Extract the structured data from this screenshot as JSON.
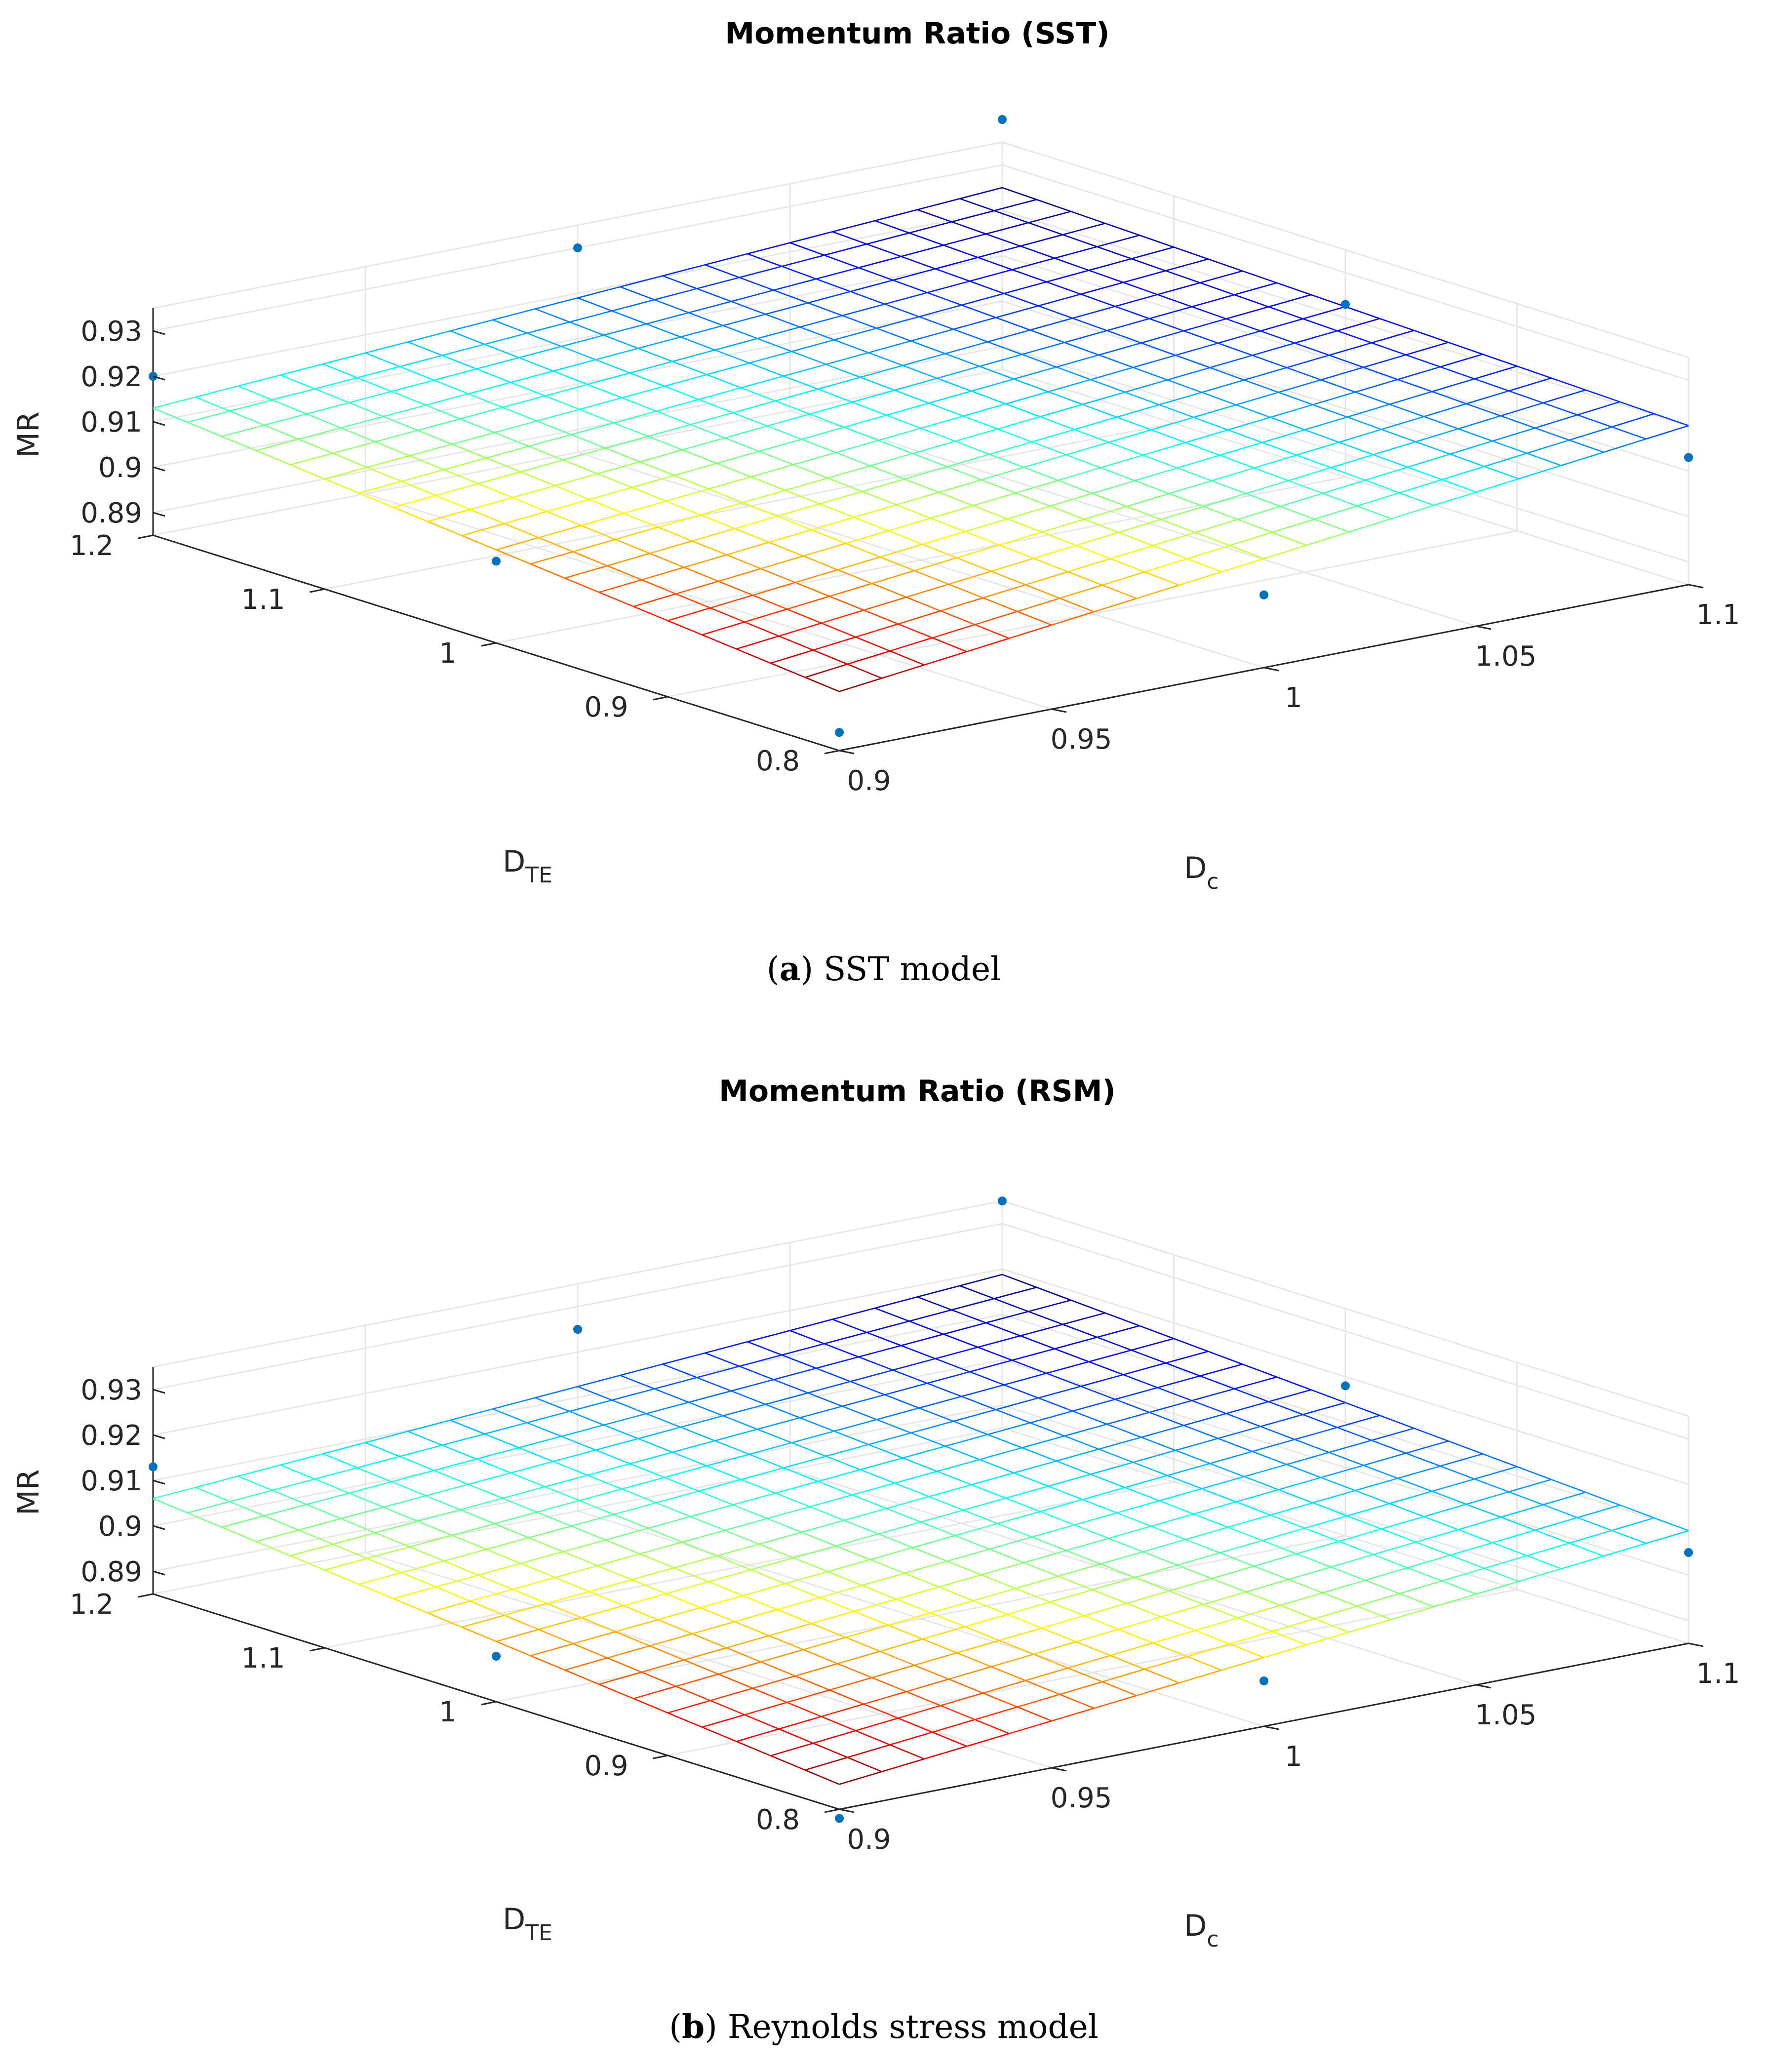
{
  "chart_data": [
    {
      "type": "surface",
      "panel": "a",
      "title": "Momentum Ratio (SST)",
      "caption": {
        "label": "a",
        "text": "SST model"
      },
      "xlabel": {
        "main": "D",
        "sub": "TE"
      },
      "ylabel": {
        "main": "D",
        "sub": "c"
      },
      "zlabel": "MR",
      "xlim": [
        0.8,
        1.2
      ],
      "ylim": [
        0.9,
        1.1
      ],
      "zlim": [
        0.885,
        0.932
      ],
      "xticks": [
        "0.8",
        "0.9",
        "1",
        "1.1",
        "1.2"
      ],
      "yticks": [
        "0.9",
        "0.95",
        "1",
        "1.05",
        "1.1"
      ],
      "zticks": [
        "0.89",
        "0.9",
        "0.91",
        "0.92",
        "0.93"
      ],
      "grid": true,
      "colormap": "jet",
      "surface_corners": {
        "a00": 0.898,
        "aX": 0.015,
        "aY": 0.022,
        "aXY": -0.01
      },
      "points": [
        {
          "x": 1.2,
          "y": 0.9,
          "z": 0.92
        },
        {
          "x": 1.2,
          "y": 1.0,
          "z": 0.93
        },
        {
          "x": 1.2,
          "y": 1.1,
          "z": 0.94
        },
        {
          "x": 1.0,
          "y": 0.9,
          "z": 0.903
        },
        {
          "x": 1.0,
          "y": 1.1,
          "z": 0.923
        },
        {
          "x": 0.8,
          "y": 0.9,
          "z": 0.889
        },
        {
          "x": 0.8,
          "y": 1.0,
          "z": 0.901
        },
        {
          "x": 0.8,
          "y": 1.1,
          "z": 0.913
        }
      ]
    },
    {
      "type": "surface",
      "panel": "b",
      "title": "Momentum Ratio (RSM)",
      "caption": {
        "label": "b",
        "text": "Reynolds stress model"
      },
      "xlabel": {
        "main": "D",
        "sub": "TE"
      },
      "ylabel": {
        "main": "D",
        "sub": "c"
      },
      "zlabel": "MR",
      "xlim": [
        0.8,
        1.2
      ],
      "ylim": [
        0.9,
        1.1
      ],
      "zlim": [
        0.885,
        0.932
      ],
      "xticks": [
        "0.8",
        "0.9",
        "1",
        "1.1",
        "1.2"
      ],
      "yticks": [
        "0.9",
        "0.95",
        "1",
        "1.05",
        "1.1"
      ],
      "zticks": [
        "0.89",
        "0.9",
        "0.91",
        "0.92",
        "0.93"
      ],
      "grid": true,
      "colormap": "jet",
      "surface_corners": {
        "a00": 0.8905,
        "aX": 0.0155,
        "aY": 0.0193,
        "aXY": -0.0065
      },
      "points": [
        {
          "x": 1.2,
          "y": 0.9,
          "z": 0.913
        },
        {
          "x": 1.2,
          "y": 1.0,
          "z": 0.925
        },
        {
          "x": 1.2,
          "y": 1.1,
          "z": 0.935
        },
        {
          "x": 1.0,
          "y": 0.9,
          "z": 0.895
        },
        {
          "x": 1.0,
          "y": 1.1,
          "z": 0.918
        },
        {
          "x": 0.8,
          "y": 0.9,
          "z": 0.883
        },
        {
          "x": 0.8,
          "y": 1.0,
          "z": 0.895
        },
        {
          "x": 0.8,
          "y": 1.1,
          "z": 0.905
        }
      ]
    }
  ]
}
